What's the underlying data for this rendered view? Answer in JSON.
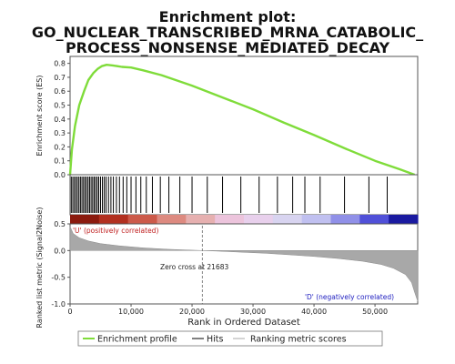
{
  "chart_data": {
    "type": "line",
    "title_lines": [
      "Enrichment plot:",
      "GO_NUCLEAR_TRANSCRIBED_MRNA_CATABOLIC_",
      "PROCESS_NONSENSE_MEDIATED_DECAY"
    ],
    "xlabel": "Rank in Ordered Dataset",
    "xlim": [
      0,
      57000
    ],
    "x_ticks": [
      0,
      10000,
      20000,
      30000,
      40000,
      50000
    ],
    "x_tick_labels": [
      "0",
      "10,000",
      "20,000",
      "30,000",
      "40,000",
      "50,000"
    ],
    "es_panel": {
      "ylabel": "Enrichment score (ES)",
      "ylim": [
        0,
        0.85
      ],
      "y_ticks": [
        0.0,
        0.1,
        0.2,
        0.3,
        0.4,
        0.5,
        0.6,
        0.7,
        0.8
      ],
      "y_tick_labels": [
        "0.0",
        "0.1",
        "0.2",
        "0.3",
        "0.4",
        "0.5",
        "0.6",
        "0.7",
        "0.8"
      ],
      "series": [
        {
          "name": "Enrichment profile",
          "color": "#7fdc3a",
          "x": [
            0,
            300,
            800,
            1500,
            2300,
            3000,
            3800,
            4500,
            5200,
            6000,
            7000,
            8500,
            10000,
            12000,
            15000,
            20000,
            25000,
            30000,
            35000,
            40000,
            45000,
            50000,
            54000,
            56500
          ],
          "y": [
            0.0,
            0.18,
            0.35,
            0.5,
            0.6,
            0.68,
            0.73,
            0.76,
            0.78,
            0.79,
            0.785,
            0.775,
            0.77,
            0.75,
            0.715,
            0.64,
            0.555,
            0.47,
            0.375,
            0.285,
            0.19,
            0.1,
            0.04,
            0.0
          ]
        }
      ]
    },
    "hits": {
      "name": "Hits",
      "color": "#000000",
      "x": [
        200,
        450,
        700,
        950,
        1200,
        1450,
        1700,
        1950,
        2200,
        2450,
        2700,
        2950,
        3200,
        3450,
        3700,
        3950,
        4200,
        4450,
        4700,
        5000,
        5300,
        5600,
        5900,
        6300,
        6700,
        7100,
        7600,
        8100,
        8700,
        9300,
        10000,
        10800,
        11600,
        12500,
        13500,
        14800,
        16200,
        18000,
        20000,
        22500,
        25000,
        28000,
        31000,
        34000,
        36500,
        38500,
        41000,
        45000,
        49000,
        52000
      ]
    },
    "rank_band": {
      "colors": [
        "#8b1a0e",
        "#b23020",
        "#cc5a4a",
        "#dd8a80",
        "#e6b0b0",
        "#ecc4dc",
        "#e8d0ec",
        "#d8d4f0",
        "#c0c0f0",
        "#9090e8",
        "#5050d8",
        "#1a1aa0"
      ]
    },
    "metric_panel": {
      "ylabel": "Ranked list metric (Signal2Noise)",
      "ylim": [
        -1.0,
        0.5
      ],
      "y_ticks": [
        0.5,
        0.0,
        -0.5,
        -1.0
      ],
      "y_tick_labels": [
        "0.5",
        "0.0",
        "-0.5",
        "-1.0"
      ],
      "series": [
        {
          "name": "Ranking metric scores",
          "color": "#a8a8a8",
          "x": [
            0,
            500,
            1500,
            3000,
            5000,
            8000,
            12000,
            16000,
            20000,
            21683,
            24000,
            28000,
            32000,
            36000,
            40000,
            44000,
            48000,
            51000,
            53000,
            55000,
            56000,
            56500,
            57000
          ],
          "y": [
            0.45,
            0.32,
            0.24,
            0.18,
            0.13,
            0.09,
            0.05,
            0.025,
            0.008,
            0.0,
            -0.01,
            -0.03,
            -0.05,
            -0.08,
            -0.11,
            -0.15,
            -0.2,
            -0.26,
            -0.33,
            -0.45,
            -0.6,
            -0.78,
            -0.95
          ]
        }
      ],
      "annotations": {
        "positive": "'U' (positively correlated)",
        "zero_cross": "Zero cross at 21683",
        "negative": "'D' (negatively correlated)",
        "zero_cross_x": 21683
      }
    },
    "legend": {
      "items": [
        "Enrichment profile",
        "Hits",
        "Ranking metric scores"
      ],
      "placement": "bottom"
    }
  }
}
